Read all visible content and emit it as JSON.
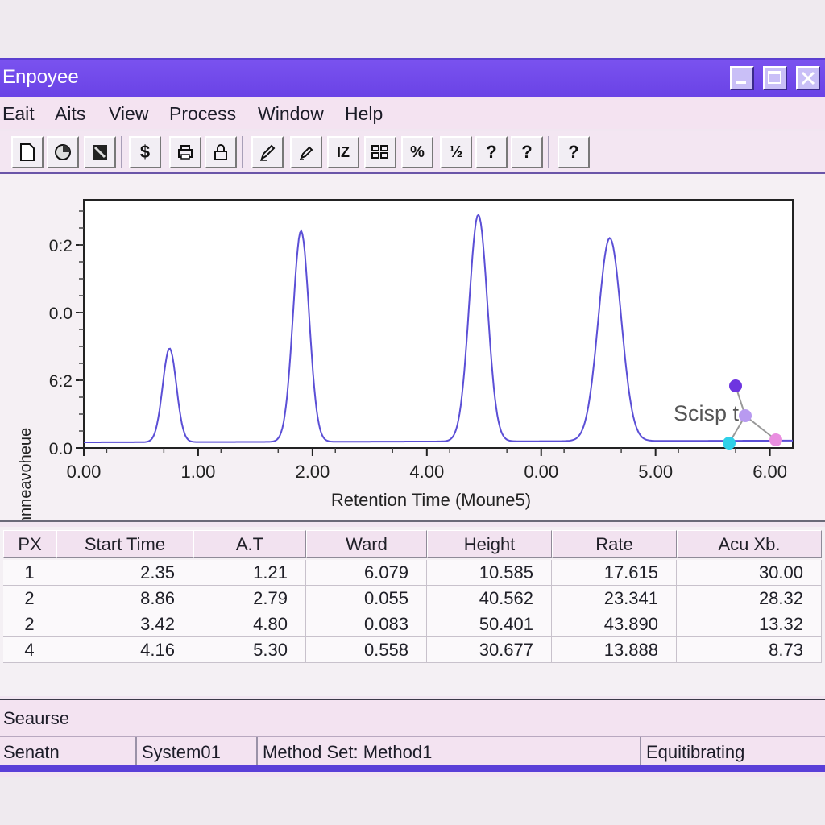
{
  "window": {
    "title": "Enpoyee"
  },
  "menu": [
    "Eait",
    "Aits",
    "View",
    "Process",
    "Window",
    "Help"
  ],
  "toolbar": {
    "icons": [
      "new-document-icon",
      "open-icon",
      "save-icon",
      "dollar-icon",
      "print-icon",
      "lock-icon",
      "pen-icon",
      "edit-icon",
      "integrate-icon",
      "table-icon",
      "percent-icon",
      "fraction-icon",
      "help-icon",
      "help-icon",
      "help-icon"
    ],
    "glyphs": [
      "",
      "",
      "",
      "$",
      "",
      "",
      "",
      "",
      "IZ",
      "",
      "%",
      "½",
      "?",
      "?",
      "?"
    ]
  },
  "chart": {
    "logo_text": "Scisp t",
    "logo_colors": [
      "#6e35e0",
      "#2fd0e8",
      "#e98ee0",
      "#b89af0"
    ],
    "line_color": "#5b4fd6"
  },
  "chart_data": {
    "type": "line",
    "xlabel": "Retention Time (Moune5)",
    "ylabel": "Gnnnnnneaνoheue",
    "x_tick_labels": [
      "0.00",
      "1.00",
      "2.00",
      "4.00",
      "0.00",
      "5.00",
      "6.00"
    ],
    "y_tick_labels": [
      "0.0",
      "6:2",
      "0.0",
      "0:2"
    ],
    "baseline": 0.05,
    "peaks": [
      {
        "x": 0.75,
        "height": 0.88
      },
      {
        "x": 1.9,
        "height": 1.92
      },
      {
        "x": 3.45,
        "height": 2.06
      },
      {
        "x": 4.6,
        "height": 1.85
      }
    ]
  },
  "table": {
    "headers": [
      "PX",
      "Start Time",
      "A.T",
      "Ward",
      "Height",
      "Rate",
      "Acu Xb."
    ],
    "rows": [
      [
        "1",
        "2.35",
        "1.21",
        "6.079",
        "10.585",
        "17.615",
        "30.00"
      ],
      [
        "2",
        "8.86",
        "2.79",
        "0.055",
        "40.562",
        "23.341",
        "28.32"
      ],
      [
        "2",
        "3.42",
        "4.80",
        "0.083",
        "50.401",
        "43.890",
        "13.32"
      ],
      [
        "4",
        "4.16",
        "5.30",
        "0.558",
        "30.677",
        "13.888",
        "8.73"
      ]
    ]
  },
  "status": {
    "section_label": "Seaurse",
    "panels": [
      "Senatn",
      "System01",
      "Method Set: Method1",
      "Equitibrating"
    ]
  }
}
